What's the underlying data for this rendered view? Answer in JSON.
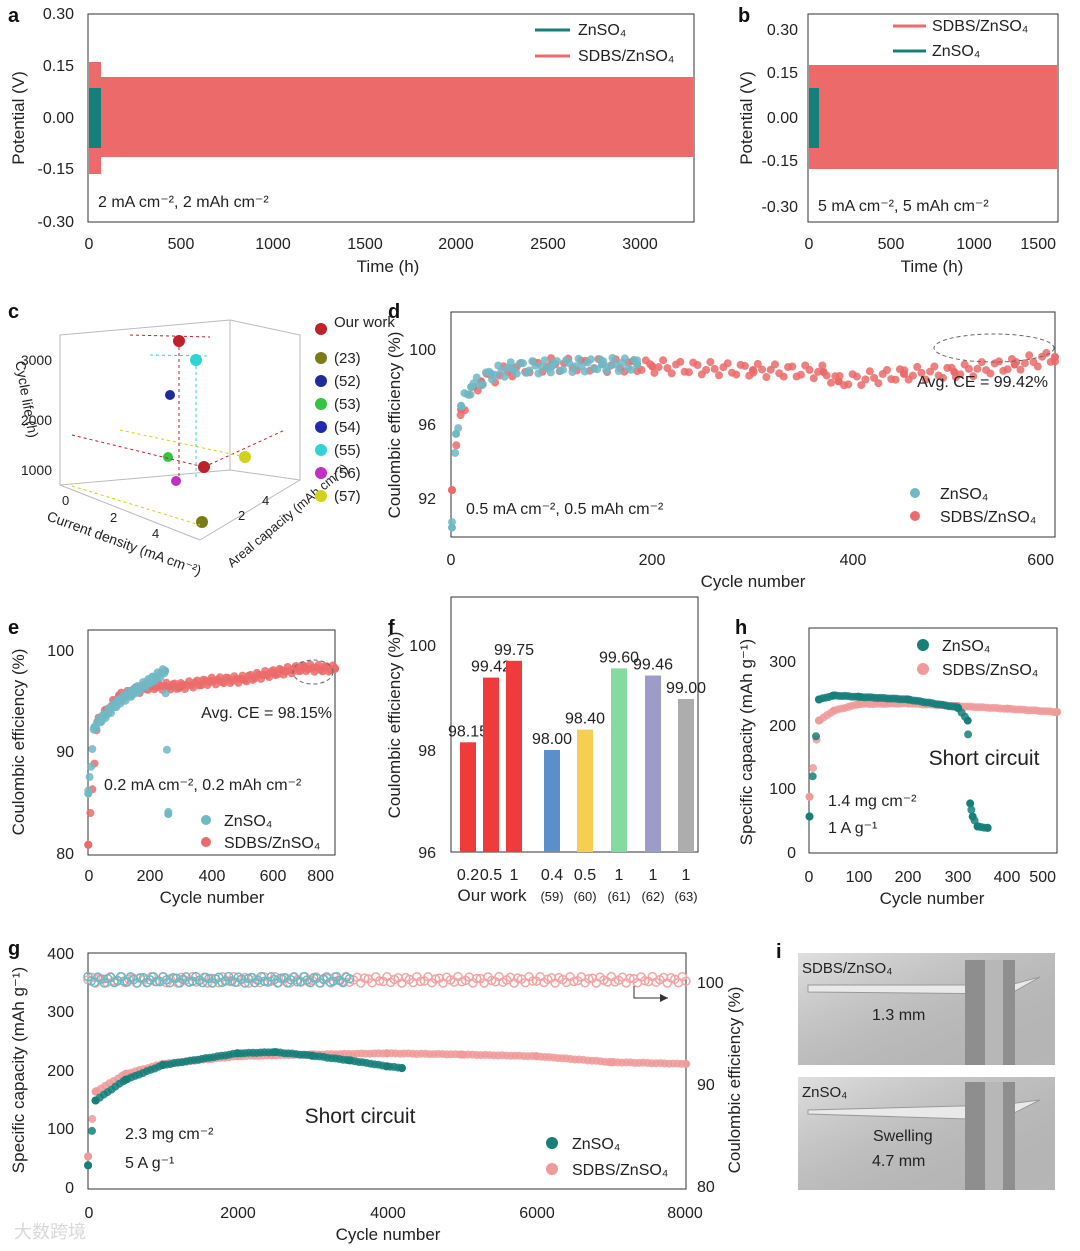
{
  "colors": {
    "teal": "#157f7a",
    "teal_light": "#6fb9c4",
    "pink": "#ec6a6a",
    "bar_red": "#ef3b3b",
    "bar_blue": "#5b8fcb",
    "bar_yellow": "#f6cf52",
    "bar_green": "#86d9a0",
    "bar_lav": "#9d9bc7",
    "bar_gray": "#adadad"
  },
  "watermark": "大数跨境",
  "panels": {
    "a": {
      "label": "a",
      "ylabel": "Potential (V)",
      "xlabel": "Time (h)",
      "annotation": "2 mA cm⁻², 2 mAh cm⁻²",
      "yticks": [
        "-0.30",
        "-0.15",
        "0.00",
        "0.15",
        "0.30"
      ],
      "xticks": [
        "0",
        "500",
        "1000",
        "1500",
        "2000",
        "2500",
        "3000"
      ],
      "legend": [
        "ZnSO₄",
        "SDBS/ZnSO₄"
      ]
    },
    "b": {
      "label": "b",
      "ylabel": "Potential (V)",
      "xlabel": "Time (h)",
      "annotation": "5 mA cm⁻², 5 mAh cm⁻²",
      "yticks": [
        "-0.30",
        "-0.15",
        "0.00",
        "0.15",
        "0.30"
      ],
      "xticks": [
        "0",
        "500",
        "1000",
        "1500"
      ],
      "legend": [
        "SDBS/ZnSO₄",
        "ZnSO₄"
      ]
    },
    "c": {
      "label": "c",
      "zlabel": "Cycle life (h)",
      "xlabel": "Current density (mA cm⁻²)",
      "ylabel": "Areal capacity (mAh cm⁻²)",
      "zticks": [
        "1000",
        "2000",
        "3000"
      ],
      "xticks": [
        "0",
        "2",
        "4"
      ],
      "yticks": [
        "2",
        "4"
      ],
      "legend": [
        "Our work",
        "(23)",
        "(52)",
        "(53)",
        "(54)",
        "(55)",
        "(56)",
        "(57)"
      ]
    },
    "d": {
      "label": "d",
      "ylabel": "Coulombic efficiency (%)",
      "xlabel": "Cycle number",
      "annotation": "0.5 mA cm⁻², 0.5 mAh cm⁻²",
      "avg": "Avg. CE = 99.42%",
      "yticks": [
        "92",
        "96",
        "100"
      ],
      "xticks": [
        "0",
        "200",
        "400",
        "600"
      ],
      "legend": [
        "ZnSO₄",
        "SDBS/ZnSO₄"
      ]
    },
    "e": {
      "label": "e",
      "ylabel": "Coulombic efficiency (%)",
      "xlabel": "Cycle number",
      "annotation": "0.2 mA cm⁻², 0.2 mAh cm⁻²",
      "avg": "Avg. CE = 98.15%",
      "yticks": [
        "80",
        "90",
        "100"
      ],
      "xticks": [
        "0",
        "200",
        "400",
        "600",
        "800"
      ],
      "legend": [
        "ZnSO₄",
        "SDBS/ZnSO₄"
      ]
    },
    "f": {
      "label": "f",
      "ylabel": "Coulombic efficiency (%)",
      "yticks": [
        "96",
        "98",
        "100"
      ],
      "group_label": "Our work"
    },
    "h": {
      "label": "h",
      "ylabel": "Specific capacity (mAh g⁻¹)",
      "xlabel": "Cycle number",
      "annotation1": "1.4 mg cm⁻²",
      "annotation2": "1 A g⁻¹",
      "short": "Short circuit",
      "yticks": [
        "0",
        "100",
        "200",
        "300"
      ],
      "xticks": [
        "0",
        "100",
        "200",
        "300",
        "400",
        "500"
      ],
      "legend": [
        "ZnSO₄",
        "SDBS/ZnSO₄"
      ]
    },
    "g": {
      "label": "g",
      "ylabel": "Specific capacity (mAh g⁻¹)",
      "y2label": "Coulombic efficiency (%)",
      "xlabel": "Cycle number",
      "annotation1": "2.3 mg cm⁻²",
      "annotation2": "5 A g⁻¹",
      "short": "Short circuit",
      "yticks": [
        "0",
        "100",
        "200",
        "300",
        "400"
      ],
      "y2ticks": [
        "80",
        "90",
        "100"
      ],
      "xticks": [
        "0",
        "2000",
        "4000",
        "6000",
        "8000"
      ],
      "legend": [
        "ZnSO₄",
        "SDBS/ZnSO₄"
      ]
    },
    "i": {
      "label": "i",
      "top_text": "SDBS/ZnSO₄",
      "top_value": "1.3 mm",
      "bottom_text": "ZnSO₄",
      "bottom_note": "Swelling",
      "bottom_value": "4.7 mm"
    }
  },
  "chart_data": [
    {
      "panel": "a",
      "type": "line",
      "xlabel": "Time (h)",
      "ylabel": "Potential (V)",
      "xlim": [
        0,
        3300
      ],
      "ylim": [
        -0.3,
        0.3
      ],
      "series": [
        {
          "name": "ZnSO₄",
          "x": [
            0,
            60
          ],
          "y_envelope": [
            0.08,
            -0.08
          ]
        },
        {
          "name": "SDBS/ZnSO₄",
          "x": [
            0,
            3300
          ],
          "y_envelope": [
            0.11,
            -0.11
          ]
        }
      ]
    },
    {
      "panel": "b",
      "type": "line",
      "xlabel": "Time (h)",
      "ylabel": "Potential (V)",
      "xlim": [
        0,
        1500
      ],
      "ylim": [
        -0.3,
        0.3
      ],
      "series": [
        {
          "name": "SDBS/ZnSO₄",
          "x": [
            0,
            1500
          ],
          "y_envelope": [
            0.16,
            -0.16
          ]
        },
        {
          "name": "ZnSO₄",
          "x": [
            0,
            45
          ],
          "y_envelope": [
            0.08,
            -0.08
          ]
        }
      ]
    },
    {
      "panel": "d",
      "type": "scatter",
      "xlabel": "Cycle number",
      "ylabel": "Coulombic efficiency (%)",
      "xlim": [
        0,
        600
      ],
      "ylim": [
        90,
        102
      ],
      "series": [
        {
          "name": "ZnSO₄",
          "x": [
            1,
            5,
            10,
            20,
            40,
            60,
            100,
            150,
            185
          ],
          "y": [
            90.5,
            95.5,
            97.0,
            98.0,
            98.7,
            99.0,
            99.1,
            99.2,
            99.2
          ]
        },
        {
          "name": "SDBS/ZnSO₄",
          "x": [
            1,
            10,
            30,
            60,
            100,
            200,
            300,
            370,
            385,
            450,
            500,
            560,
            600
          ],
          "y": [
            92.5,
            96.8,
            98.3,
            98.9,
            99.2,
            99.1,
            98.9,
            98.8,
            98.3,
            98.7,
            98.8,
            99.2,
            99.6
          ]
        }
      ]
    },
    {
      "panel": "e",
      "type": "scatter",
      "xlabel": "Cycle number",
      "ylabel": "Coulombic efficiency (%)",
      "xlim": [
        0,
        800
      ],
      "ylim": [
        80,
        102
      ],
      "series": [
        {
          "name": "ZnSO₄",
          "x": [
            1,
            20,
            50,
            100,
            150,
            200,
            250,
            260
          ],
          "y": [
            86,
            92.5,
            93.5,
            95,
            96,
            97,
            98,
            84
          ]
        },
        {
          "name": "SDBS/ZnSO₄",
          "x": [
            1,
            30,
            100,
            200,
            300,
            400,
            500,
            600,
            700,
            800
          ],
          "y": [
            81,
            93,
            95.5,
            96.5,
            96.5,
            97,
            97.2,
            97.8,
            98.3,
            98.2
          ]
        }
      ]
    },
    {
      "panel": "f",
      "type": "bar",
      "ylabel": "Coulombic efficiency (%)",
      "ylim": [
        96,
        101
      ],
      "categories": [
        "0.2",
        "0.5",
        "1",
        "0.4",
        "0.5",
        "1",
        "1",
        "1"
      ],
      "groups": [
        "Our work",
        "Our work",
        "Our work",
        "(59)",
        "(60)",
        "(61)",
        "(62)",
        "(63)"
      ],
      "values": [
        98.15,
        99.42,
        99.75,
        98.0,
        98.4,
        99.6,
        99.46,
        99.0
      ],
      "labels": [
        "98.15",
        "99.42",
        "99.75",
        "98.00",
        "98.40",
        "99.60",
        "99.46",
        "99.00"
      ]
    },
    {
      "panel": "h",
      "type": "scatter",
      "xlabel": "Cycle number",
      "ylabel": "Specific capacity (mAh g⁻¹)",
      "xlim": [
        0,
        500
      ],
      "ylim": [
        0,
        340
      ],
      "series": [
        {
          "name": "ZnSO₄",
          "x": [
            1,
            20,
            50,
            100,
            200,
            300,
            320,
            325,
            330,
            340,
            360
          ],
          "y": [
            55,
            232,
            238,
            236,
            232,
            220,
            200,
            75,
            55,
            40,
            38
          ]
        },
        {
          "name": "SDBS/ZnSO₄",
          "x": [
            1,
            20,
            50,
            100,
            200,
            300,
            400,
            500
          ],
          "y": [
            85,
            200,
            215,
            225,
            226,
            222,
            218,
            213
          ]
        }
      ]
    },
    {
      "panel": "g",
      "type": "scatter",
      "xlabel": "Cycle number",
      "ylabel": "Specific capacity (mAh g⁻¹)",
      "y2label": "Coulombic efficiency (%)",
      "xlim": [
        0,
        8000
      ],
      "ylim": [
        0,
        400
      ],
      "y2lim": [
        80,
        102
      ],
      "series": [
        {
          "name": "ZnSO₄",
          "x": [
            1,
            100,
            500,
            1000,
            2000,
            2500,
            3000,
            3500,
            4000,
            4200
          ],
          "y": [
            40,
            150,
            185,
            210,
            230,
            232,
            226,
            218,
            208,
            205
          ]
        },
        {
          "name": "SDBS/ZnSO₄",
          "x": [
            1,
            100,
            500,
            1000,
            2000,
            3000,
            4000,
            5000,
            6000,
            7000,
            8000
          ],
          "y": [
            55,
            165,
            195,
            212,
            225,
            228,
            230,
            228,
            225,
            215,
            212
          ]
        }
      ]
    }
  ]
}
